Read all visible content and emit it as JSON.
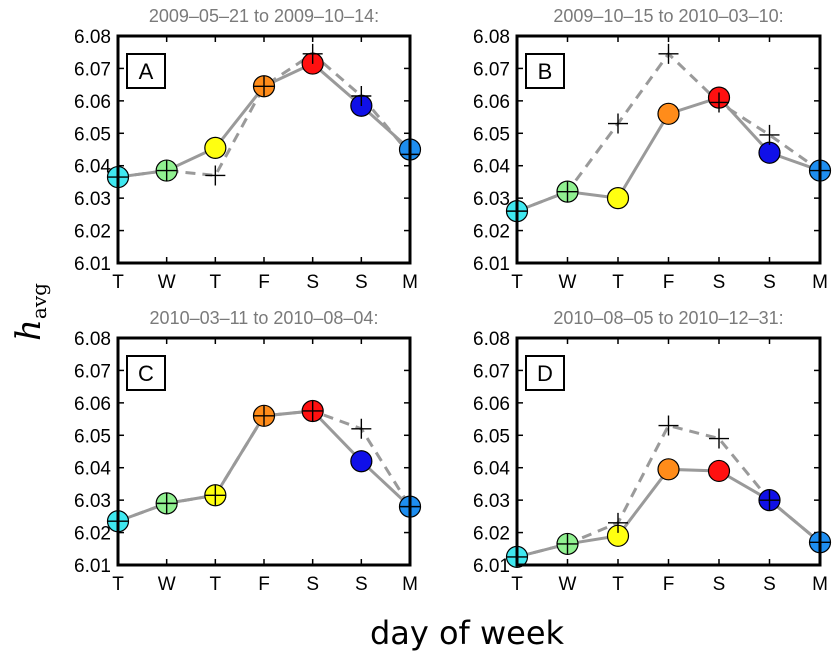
{
  "chart_data": [
    {
      "type": "line",
      "panel_label": "A",
      "title": "2009–05–21 to 2009–10–14:",
      "categories": [
        "T",
        "W",
        "T",
        "F",
        "S",
        "S",
        "M"
      ],
      "ylim": [
        6.01,
        6.08
      ],
      "yticks": [
        "6.01",
        "6.02",
        "6.03",
        "6.04",
        "6.05",
        "6.06",
        "6.07",
        "6.08"
      ],
      "series": [
        {
          "style": "solid",
          "values": [
            6.0365,
            6.0385,
            6.0455,
            6.0645,
            6.0715,
            6.0585,
            6.045
          ]
        },
        {
          "style": "dashed",
          "marker": "+",
          "values": [
            6.0365,
            6.0385,
            6.037,
            6.0645,
            6.0745,
            6.0615,
            6.0435
          ]
        }
      ]
    },
    {
      "type": "line",
      "panel_label": "B",
      "title": "2009–10–15 to 2010–03–10:",
      "categories": [
        "T",
        "W",
        "T",
        "F",
        "S",
        "S",
        "M"
      ],
      "ylim": [
        6.01,
        6.08
      ],
      "yticks": [
        "6.01",
        "6.02",
        "6.03",
        "6.04",
        "6.05",
        "6.06",
        "6.07",
        "6.08"
      ],
      "series": [
        {
          "style": "solid",
          "values": [
            6.026,
            6.032,
            6.03,
            6.056,
            6.061,
            6.044,
            6.0385
          ]
        },
        {
          "style": "dashed",
          "marker": "+",
          "values": [
            6.026,
            6.032,
            6.053,
            6.0745,
            6.0595,
            6.0495,
            6.0385
          ]
        }
      ]
    },
    {
      "type": "line",
      "panel_label": "C",
      "title": "2010–03–11 to 2010–08–04:",
      "categories": [
        "T",
        "W",
        "T",
        "F",
        "S",
        "S",
        "M"
      ],
      "ylim": [
        6.01,
        6.08
      ],
      "yticks": [
        "6.01",
        "6.02",
        "6.03",
        "6.04",
        "6.05",
        "6.06",
        "6.07",
        "6.08"
      ],
      "series": [
        {
          "style": "solid",
          "values": [
            6.0235,
            6.029,
            6.0315,
            6.056,
            6.0575,
            6.042,
            6.028
          ]
        },
        {
          "style": "dashed",
          "marker": "+",
          "values": [
            6.0235,
            6.029,
            6.0315,
            6.056,
            6.0575,
            6.052,
            6.028
          ]
        }
      ]
    },
    {
      "type": "line",
      "panel_label": "D",
      "title": "2010–08–05 to 2010–12–31:",
      "categories": [
        "T",
        "W",
        "T",
        "F",
        "S",
        "S",
        "M"
      ],
      "ylim": [
        6.01,
        6.08
      ],
      "yticks": [
        "6.01",
        "6.02",
        "6.03",
        "6.04",
        "6.05",
        "6.06",
        "6.07",
        "6.08"
      ],
      "series": [
        {
          "style": "solid",
          "values": [
            6.0125,
            6.0165,
            6.019,
            6.0395,
            6.039,
            6.03,
            6.017
          ]
        },
        {
          "style": "dashed",
          "marker": "+",
          "values": [
            6.0125,
            6.0165,
            6.023,
            6.053,
            6.049,
            6.03,
            6.017
          ]
        }
      ]
    }
  ],
  "marker_colors": [
    "#3fe8f0",
    "#90f090",
    "#ffff10",
    "#ff8c1a",
    "#ff1010",
    "#1010e8",
    "#1e8ef0"
  ],
  "line_color": "#9a9a9a",
  "ylabel": {
    "main": "h",
    "sub": "avg"
  },
  "xlabel": "day of week"
}
